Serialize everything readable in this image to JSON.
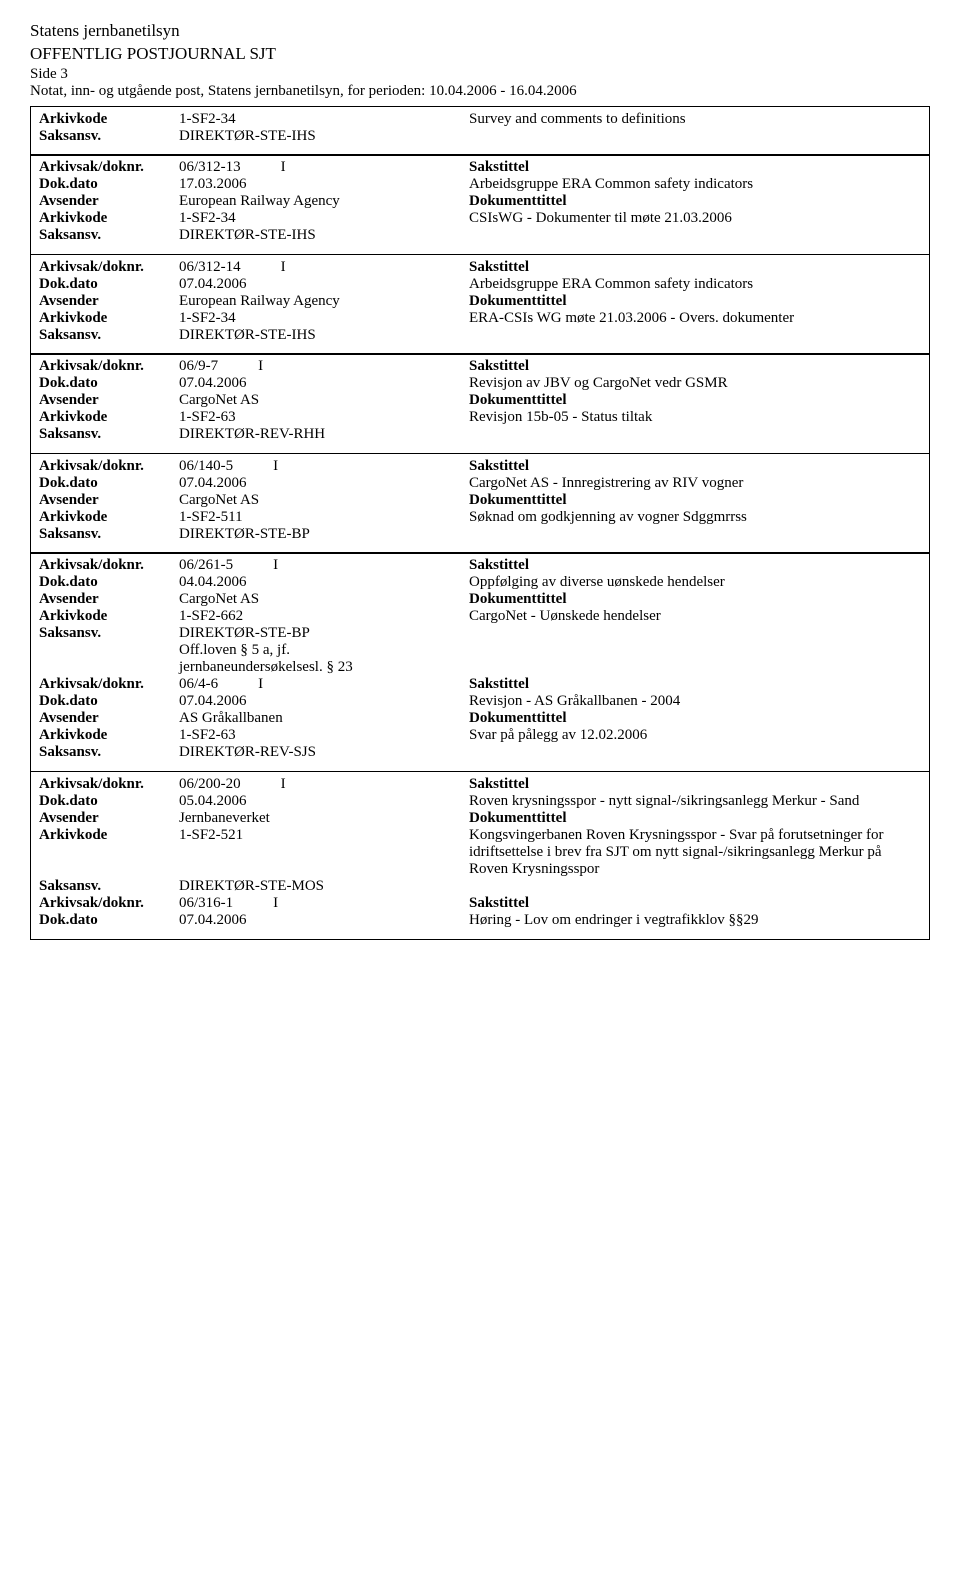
{
  "header": {
    "org": "Statens jernbanetilsyn",
    "title": "OFFENTLIG POSTJOURNAL SJT",
    "page": "Side 3",
    "sub": "Notat, inn- og utgående post, Statens jernbanetilsyn, for perioden: 10.04.2006 - 16.04.2006"
  },
  "labels": {
    "arkivkode": "Arkivkode",
    "saksansv": "Saksansv.",
    "arkivsak": "Arkivsak/doknr.",
    "dokdato": "Dok.dato",
    "avsender": "Avsender",
    "sakstittel": "Sakstittel",
    "doktittel": "Dokumenttittel"
  },
  "topblock": {
    "arkivkode": "1-SF2-34",
    "saksansv": "DIREKTØR-STE-IHS",
    "right": "Survey and comments to definitions"
  },
  "records": [
    {
      "arkivsak": "06/312-13",
      "io": "I",
      "dokdato": "17.03.2006",
      "avsender": "European Railway Agency",
      "arkivkode": "1-SF2-34",
      "saksansv": "DIREKTØR-STE-IHS",
      "sakstittel": "Arbeidsgruppe ERA Common safety indicators",
      "doktittel": "CSIsWG - Dokumenter til møte 21.03.2006",
      "extra": []
    },
    {
      "arkivsak": "06/312-14",
      "io": "I",
      "dokdato": "07.04.2006",
      "avsender": "European Railway Agency",
      "arkivkode": "1-SF2-34",
      "saksansv": "DIREKTØR-STE-IHS",
      "sakstittel": "Arbeidsgruppe ERA Common safety indicators",
      "doktittel": "ERA-CSIs WG møte 21.03.2006 - Overs. dokumenter",
      "extra": []
    },
    {
      "arkivsak": "06/9-7",
      "io": "I",
      "dokdato": "07.04.2006",
      "avsender": "CargoNet AS",
      "arkivkode": "1-SF2-63",
      "saksansv": "DIREKTØR-REV-RHH",
      "sakstittel": "Revisjon av JBV og CargoNet vedr GSMR",
      "doktittel": "Revisjon 15b-05 - Status tiltak",
      "extra": []
    },
    {
      "arkivsak": "06/140-5",
      "io": "I",
      "dokdato": "07.04.2006",
      "avsender": "CargoNet AS",
      "arkivkode": "1-SF2-511",
      "saksansv": "DIREKTØR-STE-BP",
      "sakstittel": "CargoNet AS - Innregistrering av RIV vogner",
      "doktittel": "Søknad om godkjenning av vogner Sdggmrrss",
      "extra": []
    },
    {
      "arkivsak": "06/261-5",
      "io": "I",
      "dokdato": "04.04.2006",
      "avsender": "CargoNet AS",
      "arkivkode": "1-SF2-662",
      "saksansv": "DIREKTØR-STE-BP",
      "sakstittel": "Oppfølging av diverse uønskede hendelser",
      "doktittel": "CargoNet - Uønskede hendelser",
      "extra": [
        "Off.loven § 5 a, jf.",
        "jernbaneundersøkelsesl. § 23"
      ],
      "nested": {
        "arkivsak": "06/4-6",
        "io": "I",
        "dokdato": "07.04.2006",
        "avsender": "AS Gråkallbanen",
        "arkivkode": "1-SF2-63",
        "saksansv": "DIREKTØR-REV-SJS",
        "sakstittel": "Revisjon - AS Gråkallbanen - 2004",
        "doktittel": "Svar på pålegg av 12.02.2006"
      }
    },
    {
      "arkivsak": "06/200-20",
      "io": "I",
      "dokdato": "05.04.2006",
      "avsender": "Jernbaneverket",
      "arkivkode": "1-SF2-521",
      "saksansv": "DIREKTØR-STE-MOS",
      "sakstittel": "Roven krysningsspor - nytt signal-/sikringsanlegg Merkur - Sand",
      "doktittel": "Kongsvingerbanen Roven Krysningsspor - Svar på forutsetninger for idriftsettelse i brev fra SJT om nytt signal-/sikringsanlegg Merkur på Roven Krysningsspor",
      "extra": [],
      "nested": {
        "arkivsak": "06/316-1",
        "io": "I",
        "dokdato": "07.04.2006",
        "sakstittel_label_only": true,
        "sakstittel": "Høring - Lov om endringer i vegtrafikklov §§29"
      }
    }
  ]
}
